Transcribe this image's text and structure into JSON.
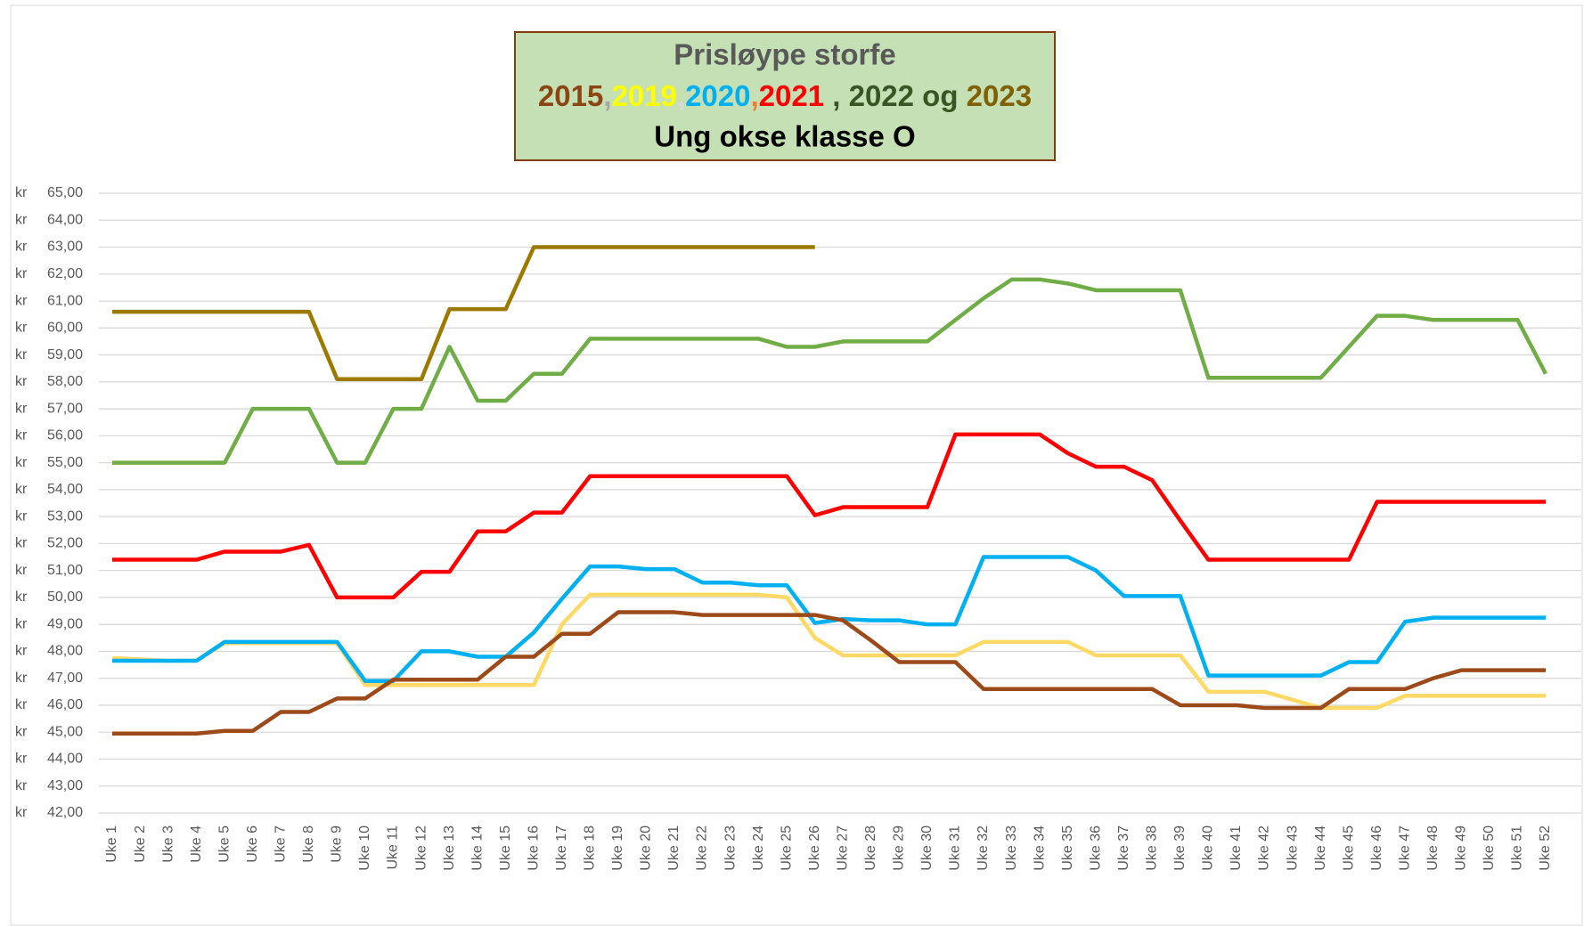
{
  "chart_data": {
    "type": "line",
    "title": "Prisløype storfe",
    "title_segments": [
      {
        "text": "2015",
        "color": "#8B4513"
      },
      {
        "text": ",",
        "color": "#A6A6A6"
      },
      {
        "text": "2019",
        "color": "#FFFF00"
      },
      {
        "text": ",",
        "color": "#D9D9D9"
      },
      {
        "text": "2020",
        "color": "#00B0F0"
      },
      {
        "text": ",",
        "color": "#ED7D31"
      },
      {
        "text": "2021",
        "color": "#FF0000"
      },
      {
        "text": " , 2022 og ",
        "color": "#375623"
      },
      {
        "text": "2023",
        "color": "#806000"
      }
    ],
    "subtitle": "Ung okse klasse O",
    "ytick_prefix": "kr",
    "categories": [
      "Uke 1",
      "Uke 2",
      "Uke 3",
      "Uke 4",
      "Uke 5",
      "Uke 6",
      "Uke 7",
      "Uke 8",
      "Uke 9",
      "Uke 10",
      "Uke 11",
      "Uke 12",
      "Uke 13",
      "Uke 14",
      "Uke 15",
      "Uke 16",
      "Uke 17",
      "Uke 18",
      "Uke 19",
      "Uke 20",
      "Uke 21",
      "Uke 22",
      "Uke 23",
      "Uke 24",
      "Uke 25",
      "Uke 26",
      "Uke 27",
      "Uke 28",
      "Uke 29",
      "Uke 30",
      "Uke 31",
      "Uke 32",
      "Uke 33",
      "Uke 34",
      "Uke 35",
      "Uke 36",
      "Uke 37",
      "Uke 38",
      "Uke 39",
      "Uke 40",
      "Uke 41",
      "Uke 42",
      "Uke 43",
      "Uke 44",
      "Uke 45",
      "Uke 46",
      "Uke 47",
      "Uke 48",
      "Uke 49",
      "Uke 50",
      "Uke 51",
      "Uke 52"
    ],
    "series": [
      {
        "color": "#FFD966",
        "values": [
          47.75,
          47.7,
          47.65,
          47.65,
          48.3,
          48.3,
          48.3,
          48.3,
          48.3,
          46.75,
          46.75,
          46.75,
          46.75,
          46.75,
          46.75,
          46.75,
          49.0,
          50.1,
          50.1,
          50.1,
          50.1,
          50.1,
          50.1,
          50.1,
          50.0,
          48.5,
          47.85,
          47.85,
          47.85,
          47.85,
          47.85,
          48.35,
          48.35,
          48.35,
          48.35,
          47.85,
          47.85,
          47.85,
          47.85,
          46.5,
          46.5,
          46.5,
          46.2,
          45.9,
          45.9,
          45.9,
          46.35,
          46.35,
          46.35,
          46.35,
          46.35,
          46.35
        ]
      },
      {
        "color": "#00B0F0",
        "values": [
          47.65,
          47.65,
          47.65,
          47.65,
          48.35,
          48.35,
          48.35,
          48.35,
          48.35,
          46.9,
          46.9,
          48.0,
          48.0,
          47.8,
          47.8,
          48.7,
          49.95,
          51.15,
          51.15,
          51.05,
          51.05,
          50.55,
          50.55,
          50.45,
          50.45,
          49.05,
          49.2,
          49.15,
          49.15,
          49.0,
          49.0,
          51.5,
          51.5,
          51.5,
          51.5,
          51.0,
          50.05,
          50.05,
          50.05,
          47.1,
          47.1,
          47.1,
          47.1,
          47.1,
          47.6,
          47.6,
          49.1,
          49.25,
          49.25,
          49.25,
          49.25,
          49.25
        ]
      },
      {
        "color": "#9C4A1A",
        "values": [
          44.95,
          44.95,
          44.95,
          44.95,
          45.05,
          45.05,
          45.75,
          45.75,
          46.25,
          46.25,
          46.95,
          46.95,
          46.95,
          46.95,
          47.8,
          47.8,
          48.65,
          48.65,
          49.45,
          49.45,
          49.45,
          49.35,
          49.35,
          49.35,
          49.35,
          49.35,
          49.15,
          48.4,
          47.6,
          47.6,
          47.6,
          46.6,
          46.6,
          46.6,
          46.6,
          46.6,
          46.6,
          46.6,
          46.0,
          46.0,
          46.0,
          45.9,
          45.9,
          45.9,
          46.6,
          46.6,
          46.6,
          47.0,
          47.3,
          47.3,
          47.3,
          47.3
        ]
      },
      {
        "color": "#FF0000",
        "values": [
          51.4,
          51.4,
          51.4,
          51.4,
          51.7,
          51.7,
          51.7,
          51.95,
          50.0,
          50.0,
          50.0,
          50.95,
          50.95,
          52.45,
          52.45,
          53.15,
          53.15,
          54.5,
          54.5,
          54.5,
          54.5,
          54.5,
          54.5,
          54.5,
          54.5,
          53.05,
          53.35,
          53.35,
          53.35,
          53.35,
          56.05,
          56.05,
          56.05,
          56.05,
          55.35,
          54.85,
          54.85,
          54.35,
          52.85,
          51.4,
          51.4,
          51.4,
          51.4,
          51.4,
          51.4,
          53.55,
          53.55,
          53.55,
          53.55,
          53.55,
          53.55,
          53.55
        ]
      },
      {
        "color": "#70AD47",
        "values": [
          55.0,
          55.0,
          55.0,
          55.0,
          55.0,
          57.0,
          57.0,
          57.0,
          55.0,
          55.0,
          57.0,
          57.0,
          59.3,
          57.3,
          57.3,
          58.3,
          58.3,
          59.6,
          59.6,
          59.6,
          59.6,
          59.6,
          59.6,
          59.6,
          59.3,
          59.3,
          59.5,
          59.5,
          59.5,
          59.5,
          60.3,
          61.1,
          61.8,
          61.8,
          61.65,
          61.4,
          61.4,
          61.4,
          61.4,
          58.15,
          58.15,
          58.15,
          58.15,
          58.15,
          59.3,
          60.45,
          60.45,
          60.3,
          60.3,
          60.3,
          60.3,
          58.3
        ]
      },
      {
        "color": "#9C7A00",
        "values": [
          60.6,
          60.6,
          60.6,
          60.6,
          60.6,
          60.6,
          60.6,
          60.6,
          58.1,
          58.1,
          58.1,
          58.1,
          60.7,
          60.7,
          60.7,
          63.0,
          63.0,
          63.0,
          63.0,
          63.0,
          63.0,
          63.0,
          63.0,
          63.0,
          63.0,
          63.0,
          null,
          null,
          null,
          null,
          null,
          null,
          null,
          null,
          null,
          null,
          null,
          null,
          null,
          null,
          null,
          null,
          null,
          null,
          null,
          null,
          null,
          null,
          null,
          null,
          null,
          null
        ]
      }
    ],
    "ylim": [
      42,
      65
    ],
    "yticks": [
      {
        "value": 42,
        "label": "42,00"
      },
      {
        "value": 43,
        "label": "43,00"
      },
      {
        "value": 44,
        "label": "44,00"
      },
      {
        "value": 45,
        "label": "45,00"
      },
      {
        "value": 46,
        "label": "46,00"
      },
      {
        "value": 47,
        "label": "47,00"
      },
      {
        "value": 48,
        "label": "48,00"
      },
      {
        "value": 49,
        "label": "49,00"
      },
      {
        "value": 50,
        "label": "50,00"
      },
      {
        "value": 51,
        "label": "51,00"
      },
      {
        "value": 52,
        "label": "52,00"
      },
      {
        "value": 53,
        "label": "53,00"
      },
      {
        "value": 54,
        "label": "54,00"
      },
      {
        "value": 55,
        "label": "55,00"
      },
      {
        "value": 56,
        "label": "56,00"
      },
      {
        "value": 57,
        "label": "57,00"
      },
      {
        "value": 58,
        "label": "58,00"
      },
      {
        "value": 59,
        "label": "59,00"
      },
      {
        "value": 60,
        "label": "60,00"
      },
      {
        "value": 61,
        "label": "61,00"
      },
      {
        "value": 62,
        "label": "62,00"
      },
      {
        "value": 63,
        "label": "63,00"
      },
      {
        "value": 64,
        "label": "64,00"
      },
      {
        "value": 65,
        "label": "65,00"
      }
    ],
    "grid": true
  }
}
